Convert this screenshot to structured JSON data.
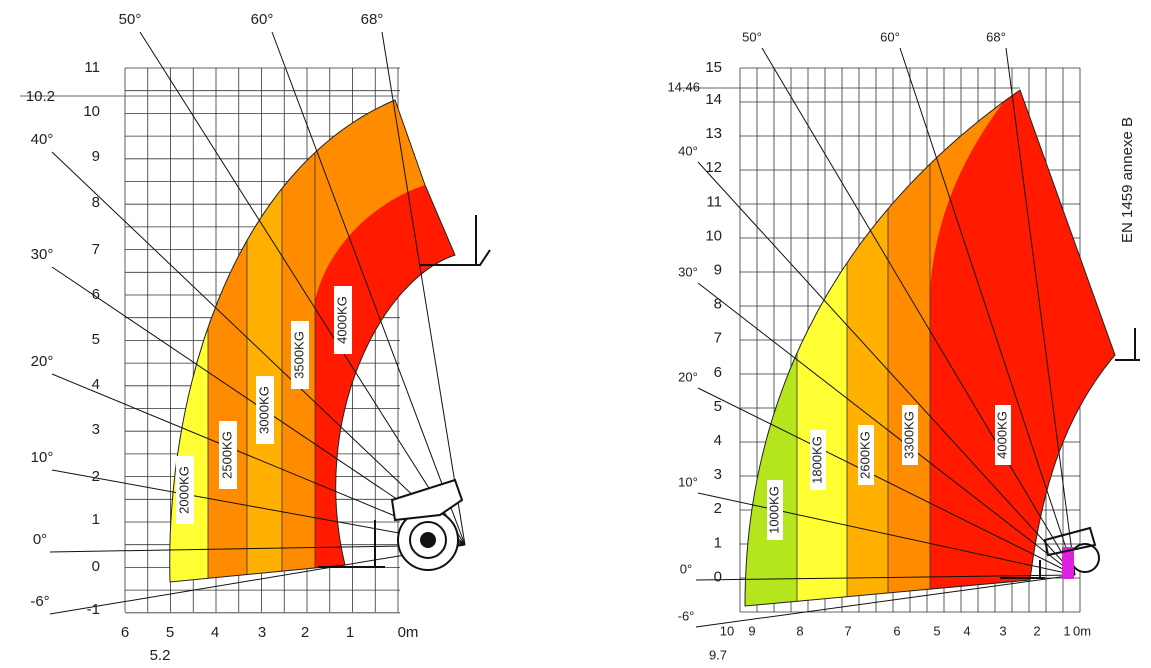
{
  "left": {
    "y_labels": [
      "11",
      "10.2",
      "10",
      "9",
      "8",
      "7",
      "6",
      "5",
      "4",
      "3",
      "2",
      "1",
      "0",
      "-1"
    ],
    "x_labels": [
      "6",
      "5",
      "4",
      "3",
      "2",
      "1",
      "0m"
    ],
    "x_extra": "5.2",
    "angles": [
      "50°",
      "60°",
      "68°",
      "40°",
      "30°",
      "20°",
      "10°",
      "0°",
      "-6°"
    ],
    "zones": [
      "2000KG",
      "2500KG",
      "3000KG",
      "3500KG",
      "4000KG"
    ]
  },
  "right": {
    "y_labels": [
      "15",
      "14.46",
      "14",
      "13",
      "12",
      "11",
      "10",
      "9",
      "8",
      "7",
      "6",
      "5",
      "4",
      "3",
      "2",
      "1",
      "0"
    ],
    "x_labels": [
      "10",
      "9",
      "8",
      "7",
      "6",
      "5",
      "4",
      "3",
      "2",
      "1",
      "0m"
    ],
    "x_extra": "9.7",
    "angles": [
      "50°",
      "60°",
      "68°",
      "40°",
      "30°",
      "20°",
      "10°",
      "0°",
      "-6°"
    ],
    "zones": [
      "1000KG",
      "1800KG",
      "2600KG",
      "3300KG",
      "4000KG"
    ]
  },
  "note": "EN 1459 annexe B"
}
